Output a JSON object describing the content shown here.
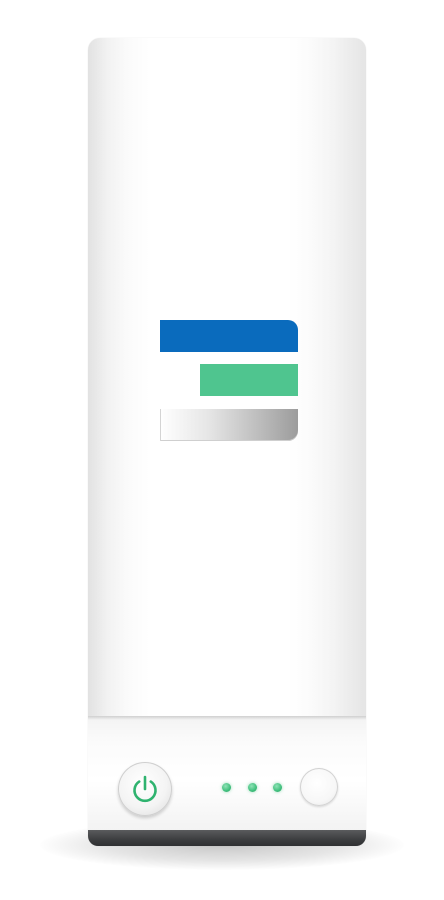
{
  "device": {
    "colors": {
      "body": "#ffffff",
      "base_strip": "#3c3d3f",
      "logo_blue": "#0a6bbd",
      "logo_green": "#4fc58f",
      "logo_gray": "#b9b9b9",
      "indicator_green": "#3fbf7c"
    },
    "logo": {
      "icon": "stacked-bars-logo-icon",
      "bars": [
        "blue",
        "green",
        "gray"
      ]
    },
    "controls": {
      "power_button_icon": "power-icon",
      "indicator_lights": 3,
      "secondary_button_icon": "circle-button-icon"
    }
  }
}
